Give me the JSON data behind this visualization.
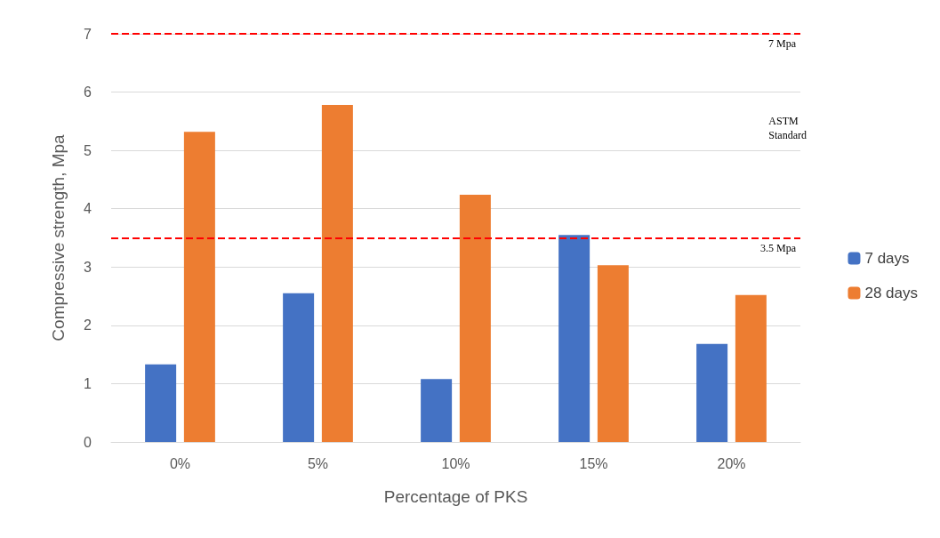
{
  "chart_data": {
    "type": "bar",
    "xlabel": "Percentage of PKS",
    "ylabel": "Compressive strength, Mpa",
    "categories": [
      "0%",
      "5%",
      "10%",
      "15%",
      "20%"
    ],
    "series": [
      {
        "name": "7 days",
        "color": "#4472c4",
        "values": [
          1.33,
          2.55,
          1.08,
          3.55,
          1.68
        ]
      },
      {
        "name": "28 days",
        "color": "#ed7d31",
        "values": [
          5.32,
          5.78,
          4.24,
          3.03,
          2.52
        ]
      }
    ],
    "ylim": [
      0,
      7
    ],
    "yticks": [
      0,
      1,
      2,
      3,
      4,
      5,
      6,
      7
    ],
    "grid": "y",
    "legend": "right",
    "ref_lines": [
      {
        "axis": "y",
        "value": 7,
        "label": "7 Mpa",
        "color": "#ff0000",
        "line_style": "dashed"
      },
      {
        "axis": "y",
        "value": 3.5,
        "label": "3.5 Mpa",
        "color": "#ff0000",
        "line_style": "dashed"
      }
    ],
    "annotations": [
      "ASTM Standard"
    ]
  }
}
